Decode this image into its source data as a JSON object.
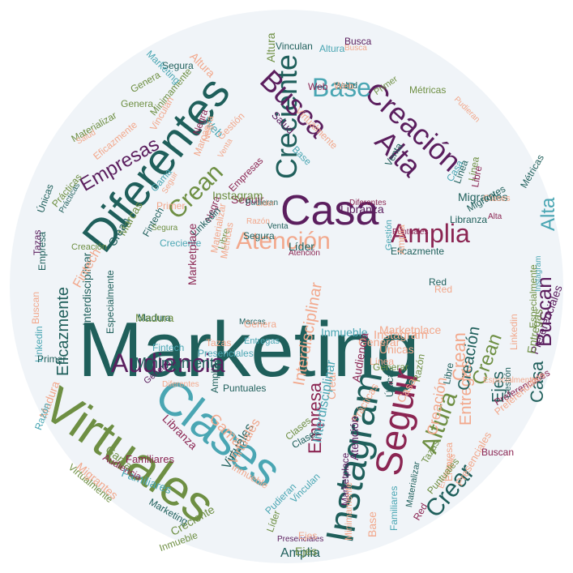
{
  "palette": {
    "teal": "#1f5f5b",
    "green": "#6e8f43",
    "purple": "#5b1e5e",
    "berry": "#8b2552",
    "salmon": "#f2a88c",
    "cyan": "#4aa6b3",
    "background": "#f0f4f8"
  },
  "words": [
    {
      "text": "Marketing",
      "color": "teal"
    },
    {
      "text": "Virtuales",
      "color": "green"
    },
    {
      "text": "Clases",
      "color": "cyan"
    },
    {
      "text": "Diferentes",
      "color": "teal"
    },
    {
      "text": "Casa",
      "color": "purple"
    },
    {
      "text": "Instagram",
      "color": "teal"
    },
    {
      "text": "Seguir",
      "color": "berry"
    },
    {
      "text": "Creación",
      "color": "purple"
    },
    {
      "text": "Audiencia",
      "color": "purple"
    },
    {
      "text": "Creciente",
      "color": "teal"
    },
    {
      "text": "Busca",
      "color": "purple"
    },
    {
      "text": "Alta",
      "color": "purple"
    },
    {
      "text": "Base",
      "color": "cyan"
    },
    {
      "text": "Amplia",
      "color": "berry"
    },
    {
      "text": "Atención",
      "color": "salmon"
    },
    {
      "text": "Crean",
      "color": "green"
    },
    {
      "text": "Empresas",
      "color": "purple"
    },
    {
      "text": "Altura",
      "color": "green"
    },
    {
      "text": "Crear",
      "color": "teal"
    },
    {
      "text": "Buscan",
      "color": "purple"
    },
    {
      "text": "Empresa",
      "color": "berry"
    },
    {
      "text": "Eficazmente",
      "color": "teal"
    },
    {
      "text": "Entregas",
      "color": "salmon"
    },
    {
      "text": "Casa",
      "color": "teal"
    },
    {
      "text": "Ejes",
      "color": "teal"
    },
    {
      "text": "Alta",
      "color": "cyan"
    },
    {
      "text": "Amplia",
      "color": "teal"
    },
    {
      "text": "Migrantes",
      "color": "teal"
    },
    {
      "text": "Libranza",
      "color": "purple"
    },
    {
      "text": "Instagram",
      "color": "salmon"
    },
    {
      "text": "Inmueble",
      "color": "cyan"
    },
    {
      "text": "Preferenciales",
      "color": "purple"
    },
    {
      "text": "Interdisciplinar",
      "color": "teal"
    },
    {
      "text": "Fintech",
      "color": "cyan"
    },
    {
      "text": "Marcas",
      "color": "green"
    },
    {
      "text": "Familiares",
      "color": "cyan"
    },
    {
      "text": "Virtualmente",
      "color": "green"
    },
    {
      "text": "Red",
      "color": "berry"
    },
    {
      "text": "Base",
      "color": "salmon"
    },
    {
      "text": "Seguir",
      "color": "berry"
    },
    {
      "text": "Linkedin",
      "color": "cyan"
    },
    {
      "text": "Tazas",
      "color": "purple"
    },
    {
      "text": "Únicas",
      "color": "teal"
    },
    {
      "text": "Web",
      "color": "berry"
    },
    {
      "text": "Salud",
      "color": "teal"
    },
    {
      "text": "Genera",
      "color": "green"
    },
    {
      "text": "Materializar",
      "color": "green"
    },
    {
      "text": "Minimamente",
      "color": "green"
    },
    {
      "text": "Primer",
      "color": "green"
    },
    {
      "text": "Negra",
      "color": "berry"
    },
    {
      "text": "Gama",
      "color": "cyan"
    },
    {
      "text": "Gestión",
      "color": "cyan"
    },
    {
      "text": "Madura",
      "color": "salmon"
    },
    {
      "text": "Prácticas",
      "color": "salmon"
    },
    {
      "text": "Razón",
      "color": "cyan"
    },
    {
      "text": "Segura",
      "color": "teal"
    },
    {
      "text": "Venta",
      "color": "teal"
    },
    {
      "text": "Vinculan",
      "color": "teal"
    },
    {
      "text": "Pudieran",
      "color": "cyan"
    },
    {
      "text": "Líder",
      "color": "green"
    },
    {
      "text": "Métricas",
      "color": "teal"
    },
    {
      "text": "Puntuales",
      "color": "teal"
    },
    {
      "text": "Libre",
      "color": "green"
    },
    {
      "text": "Especialmente",
      "color": "green"
    },
    {
      "text": "Presenciales",
      "color": "salmon"
    },
    {
      "text": "Generar",
      "color": "salmon"
    },
    {
      "text": "Línea",
      "color": "salmon"
    },
    {
      "text": "Marketplace",
      "color": "purple"
    },
    {
      "text": "Clases",
      "color": "salmon"
    },
    {
      "text": "Crean",
      "color": "teal"
    },
    {
      "text": "Creación",
      "color": "green"
    },
    {
      "text": "Altura",
      "color": "salmon"
    },
    {
      "text": "Buscan",
      "color": "berry"
    },
    {
      "text": "Creciente",
      "color": "cyan"
    },
    {
      "text": "Diferentes",
      "color": "berry"
    },
    {
      "text": "Eficazmente",
      "color": "salmon"
    },
    {
      "text": "Atención",
      "color": "berry"
    },
    {
      "text": "Audiencia",
      "color": "berry"
    },
    {
      "text": "Migrantes",
      "color": "teal"
    },
    {
      "text": "Fintech",
      "color": "teal"
    },
    {
      "text": "Libranza",
      "color": "berry"
    },
    {
      "text": "Puntuales",
      "color": "berry"
    },
    {
      "text": "Empresas",
      "color": "salmon"
    },
    {
      "text": "Gestión",
      "color": "teal"
    },
    {
      "text": "Familiares",
      "color": "berry"
    },
    {
      "text": "Web",
      "color": "cyan"
    },
    {
      "text": "Salud",
      "color": "purple"
    },
    {
      "text": "Materializar",
      "color": "teal"
    },
    {
      "text": "Razón",
      "color": "green"
    },
    {
      "text": "Segura",
      "color": "teal"
    },
    {
      "text": "Primer",
      "color": "teal"
    },
    {
      "text": "Vinculan",
      "color": "cyan"
    },
    {
      "text": "Genera",
      "color": "green"
    },
    {
      "text": "Marcas",
      "color": "teal"
    },
    {
      "text": "Negra",
      "color": "berry"
    },
    {
      "text": "Líder",
      "color": "teal"
    },
    {
      "text": "Marketing",
      "color": "teal"
    },
    {
      "text": "Altura",
      "color": "green"
    },
    {
      "text": "Busca",
      "color": "purple"
    },
    {
      "text": "Red",
      "color": "salmon"
    },
    {
      "text": "Inmueble",
      "color": "salmon"
    },
    {
      "text": "Pudieran",
      "color": "teal"
    },
    {
      "text": "Venta",
      "color": "teal"
    },
    {
      "text": "Crean",
      "color": "green"
    },
    {
      "text": "Ejes",
      "color": "green"
    },
    {
      "text": "Amplia",
      "color": "teal"
    },
    {
      "text": "Madura",
      "color": "teal"
    },
    {
      "text": "Interdisciplinar",
      "color": "salmon"
    },
    {
      "text": "Empresa",
      "color": "salmon"
    },
    {
      "text": "Tazas",
      "color": "green"
    },
    {
      "text": "Gama",
      "color": "salmon"
    },
    {
      "text": "Virtuales",
      "color": "teal"
    },
    {
      "text": "Clases",
      "color": "teal"
    },
    {
      "text": "Creación",
      "color": "teal"
    },
    {
      "text": "Entregas",
      "color": "cyan"
    },
    {
      "text": "Preferenciales",
      "color": "berry"
    },
    {
      "text": "Presenciales",
      "color": "purple"
    },
    {
      "text": "Linkedin",
      "color": "teal"
    },
    {
      "text": "Seguir",
      "color": "salmon"
    },
    {
      "text": "Especialmente",
      "color": "salmon"
    },
    {
      "text": "Casa",
      "color": "cyan"
    },
    {
      "text": "Prácticas",
      "color": "teal"
    },
    {
      "text": "Únicas",
      "color": "teal"
    },
    {
      "text": "Generar",
      "color": "purple"
    },
    {
      "text": "Línea",
      "color": "green"
    },
    {
      "text": "Métricas",
      "color": "green"
    },
    {
      "text": "Base",
      "color": "cyan"
    },
    {
      "text": "Libre",
      "color": "berry"
    },
    {
      "text": "Buscan",
      "color": "salmon"
    },
    {
      "text": "Minimamente",
      "color": "teal"
    },
    {
      "text": "Audiencia",
      "color": "berry"
    },
    {
      "text": "Instagram",
      "color": "cyan"
    },
    {
      "text": "Alta",
      "color": "berry"
    },
    {
      "text": "Marketplace",
      "color": "berry"
    },
    {
      "text": "Creciente",
      "color": "green"
    },
    {
      "text": "Atención",
      "color": "purple"
    },
    {
      "text": "Familiares",
      "color": "cyan"
    },
    {
      "text": "Migrantes",
      "color": "salmon"
    },
    {
      "text": "Crear",
      "color": "salmon"
    },
    {
      "text": "Virtualmente",
      "color": "salmon"
    },
    {
      "text": "Diferentes",
      "color": "salmon"
    },
    {
      "text": "Fintech",
      "color": "salmon"
    },
    {
      "text": "Eficazmente",
      "color": "teal"
    },
    {
      "text": "Libranza",
      "color": "teal"
    },
    {
      "text": "Puntuales",
      "color": "green"
    },
    {
      "text": "Empresas",
      "color": "berry"
    },
    {
      "text": "Gestión",
      "color": "salmon"
    },
    {
      "text": "Web",
      "color": "salmon"
    },
    {
      "text": "Salud",
      "color": "salmon"
    },
    {
      "text": "Materializar",
      "color": "salmon"
    },
    {
      "text": "Razón",
      "color": "salmon"
    },
    {
      "text": "Segura",
      "color": "green"
    },
    {
      "text": "Primer",
      "color": "salmon"
    },
    {
      "text": "Vinculan",
      "color": "salmon"
    },
    {
      "text": "Genera",
      "color": "salmon"
    },
    {
      "text": "Marcas",
      "color": "salmon"
    },
    {
      "text": "Negra",
      "color": "salmon"
    },
    {
      "text": "Líder",
      "color": "salmon"
    },
    {
      "text": "Marketing",
      "color": "cyan"
    },
    {
      "text": "Altura",
      "color": "cyan"
    },
    {
      "text": "Busca",
      "color": "salmon"
    },
    {
      "text": "Red",
      "color": "teal"
    },
    {
      "text": "Inmueble",
      "color": "green"
    },
    {
      "text": "Pudieran",
      "color": "salmon"
    },
    {
      "text": "Venta",
      "color": "salmon"
    },
    {
      "text": "Crean",
      "color": "salmon"
    },
    {
      "text": "Ejes",
      "color": "salmon"
    },
    {
      "text": "Amplia",
      "color": "salmon"
    },
    {
      "text": "Madura",
      "color": "green"
    },
    {
      "text": "Interdisciplinar",
      "color": "cyan"
    },
    {
      "text": "Empresa",
      "color": "teal"
    },
    {
      "text": "Tazas",
      "color": "salmon"
    },
    {
      "text": "Gama",
      "color": "green"
    },
    {
      "text": "Virtuales",
      "color": "salmon"
    },
    {
      "text": "Clases",
      "color": "green"
    },
    {
      "text": "Creación",
      "color": "salmon"
    },
    {
      "text": "Entregas",
      "color": "green"
    },
    {
      "text": "Preferenciales",
      "color": "salmon"
    },
    {
      "text": "Presenciales",
      "color": "cyan"
    },
    {
      "text": "Linkedin",
      "color": "salmon"
    },
    {
      "text": "Especialmente",
      "color": "teal"
    },
    {
      "text": "Casa",
      "color": "salmon"
    },
    {
      "text": "Prácticas",
      "color": "green"
    },
    {
      "text": "Únicas",
      "color": "salmon"
    },
    {
      "text": "Generar",
      "color": "green"
    },
    {
      "text": "Línea",
      "color": "teal"
    },
    {
      "text": "Métricas",
      "color": "salmon"
    },
    {
      "text": "Libre",
      "color": "teal"
    },
    {
      "text": "Minimamente",
      "color": "salmon"
    },
    {
      "text": "Marketplace",
      "color": "salmon"
    },
    {
      "text": "Instagram",
      "color": "green"
    },
    {
      "text": "Seguir",
      "color": "teal"
    }
  ]
}
